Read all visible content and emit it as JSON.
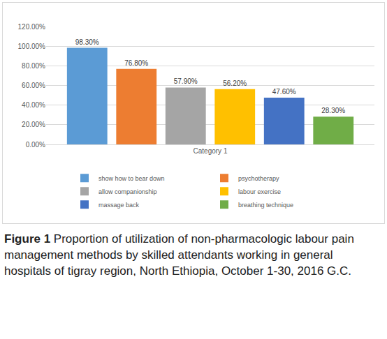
{
  "chart_data": {
    "type": "bar",
    "categories": [
      "Category 1"
    ],
    "series": [
      {
        "name": "show how to bear down",
        "color": "#5b9bd5",
        "values": [
          98.3
        ],
        "value_labels": [
          "98.30%"
        ]
      },
      {
        "name": "psychotherapy",
        "color": "#ed7d31",
        "values": [
          76.8
        ],
        "value_labels": [
          "76.80%"
        ]
      },
      {
        "name": "allow companionship",
        "color": "#a5a5a5",
        "values": [
          57.9
        ],
        "value_labels": [
          "57.90%"
        ]
      },
      {
        "name": "labour exercise",
        "color": "#ffc000",
        "values": [
          56.2
        ],
        "value_labels": [
          "56.20%"
        ]
      },
      {
        "name": "massage back",
        "color": "#4472c4",
        "values": [
          47.6
        ],
        "value_labels": [
          "47.60%"
        ]
      },
      {
        "name": "breathing technique",
        "color": "#70ad47",
        "values": [
          28.3
        ],
        "value_labels": [
          "28.30%"
        ]
      }
    ],
    "ylim": [
      0,
      120
    ],
    "yticks": [
      {
        "value": 0,
        "label": "0.00%"
      },
      {
        "value": 20,
        "label": "20.00%"
      },
      {
        "value": 40,
        "label": "40.00%"
      },
      {
        "value": 60,
        "label": "60.00%"
      },
      {
        "value": 80,
        "label": "80.00%"
      },
      {
        "value": 100,
        "label": "100.00%"
      },
      {
        "value": 120,
        "label": "120.00%"
      }
    ],
    "grid": true,
    "legend": "bottom",
    "data_labels": true,
    "caption_label": "Figure 1",
    "caption": "Proportion of utilization of non-pharmacologic labour pain management methods by skilled attendants working in general hospitals of tigray region, North Ethiopia, October 1-30, 2016 G.C."
  }
}
